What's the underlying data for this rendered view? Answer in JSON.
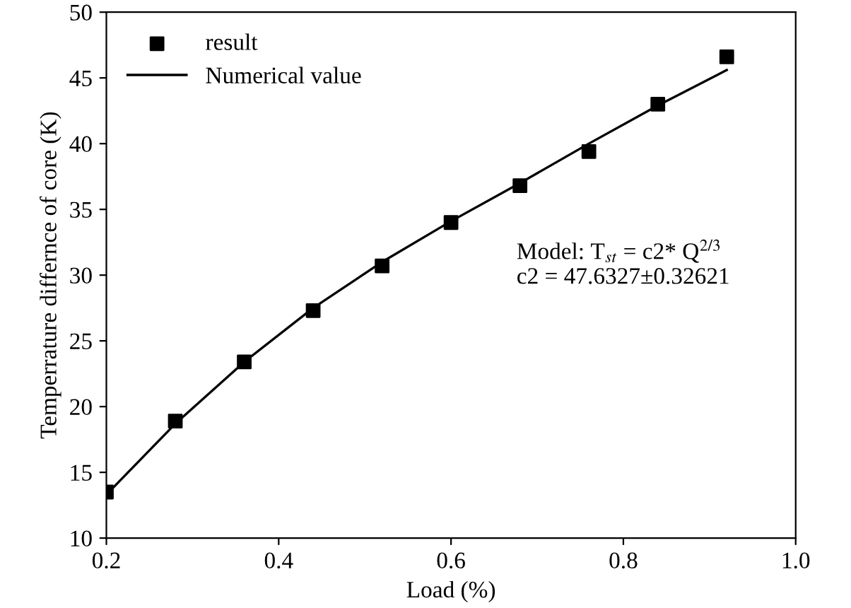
{
  "chart_data": {
    "type": "scatter",
    "xlabel": "Load (%)",
    "ylabel": "Temperrature differnce of core (K)",
    "xlim": [
      0.2,
      1.0
    ],
    "xticks": [
      {
        "value": 0.2,
        "label": "0.2"
      },
      {
        "value": 0.4,
        "label": "0.4"
      },
      {
        "value": 0.6,
        "label": "0.6"
      },
      {
        "value": 0.8,
        "label": "0.8"
      },
      {
        "value": 1.0,
        "label": "1.0"
      }
    ],
    "ylim": [
      10,
      50
    ],
    "yticks": [
      10,
      15,
      20,
      25,
      30,
      35,
      40,
      45,
      50
    ],
    "grid": false,
    "legend": "top left",
    "annotations": [
      "Model: T$_{st}$ = c2* Q$^{2/3}$\nc2 = 47.6327±0.32621"
    ],
    "series": [
      {
        "name": "result",
        "marker": "square",
        "color": "#000000",
        "x": [
          0.2,
          0.28,
          0.36,
          0.44,
          0.52,
          0.6,
          0.68,
          0.76,
          0.84,
          0.92
        ],
        "values": [
          13.5,
          18.9,
          23.4,
          27.3,
          30.7,
          34.0,
          36.8,
          39.4,
          43.0,
          46.6
        ]
      },
      {
        "name": "Numerical value",
        "type": "line",
        "marker": "none",
        "line_style": "solid",
        "color": "#000000",
        "x": [
          0.2,
          0.28,
          0.36,
          0.44,
          0.52,
          0.6,
          0.68,
          0.76,
          0.84,
          0.92
        ],
        "values": [
          13.3,
          18.7,
          23.4,
          27.5,
          31.0,
          34.1,
          37.0,
          40.0,
          42.9,
          45.6
        ]
      }
    ]
  }
}
